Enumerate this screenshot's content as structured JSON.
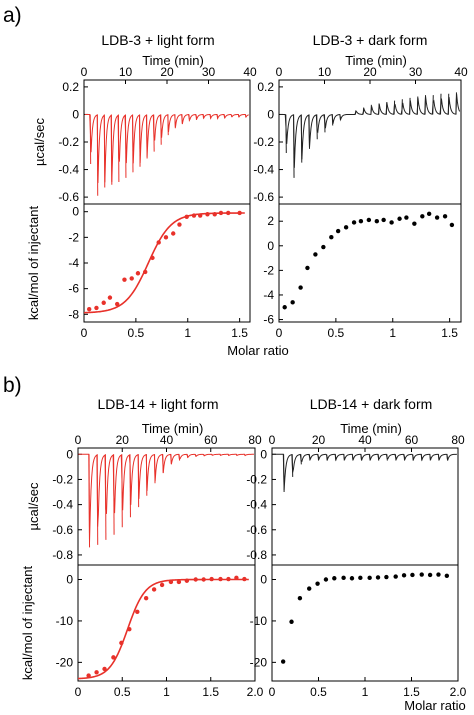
{
  "panel_labels": [
    "a)",
    "b)"
  ],
  "chart_data": [
    {
      "id": "a-light",
      "type": "line",
      "title": "LDB-3 + light form",
      "thermogram": {
        "xlabel": "Time (min)",
        "xlim": [
          0,
          40
        ],
        "xticks": [
          0,
          10,
          20,
          30,
          40
        ],
        "xtick_labels": [
          "0",
          "10",
          "20",
          "30",
          "40"
        ],
        "ylabel": "µcal/sec",
        "ylim": [
          -0.65,
          0.25
        ],
        "yticks": [
          0.2,
          0,
          -0.2,
          -0.4,
          -0.6
        ],
        "ytick_labels": [
          "0.2",
          "0",
          "-0.2",
          "-0.4",
          "-0.6"
        ],
        "color": "#e8312a",
        "injection_times": [
          1.5,
          3.2,
          4.9,
          6.6,
          8.3,
          10.0,
          11.7,
          13.4,
          15.1,
          16.8,
          18.5,
          20.2,
          21.9,
          23.6,
          25.3,
          27.0,
          28.7,
          30.4,
          32.1,
          33.8,
          35.5,
          37.2,
          38.9
        ],
        "peaks": [
          -0.36,
          -0.59,
          -0.53,
          -0.51,
          -0.49,
          -0.46,
          -0.42,
          -0.38,
          -0.32,
          -0.27,
          -0.22,
          -0.15,
          -0.1,
          -0.07,
          -0.05,
          -0.04,
          -0.03,
          -0.03,
          -0.03,
          -0.03,
          -0.02,
          -0.02,
          -0.02
        ]
      },
      "isotherm": {
        "xlabel": "",
        "xlim": [
          0,
          1.6
        ],
        "xticks": [
          0,
          0.5,
          1,
          1.5
        ],
        "xtick_labels": [
          "0",
          "0.5",
          "1",
          "1.5"
        ],
        "ylabel": "kcal/mol of injectant",
        "ylim": [
          -8.6,
          0.6
        ],
        "yticks": [
          0,
          -2,
          -4,
          -6,
          -8
        ],
        "ytick_labels": [
          "0",
          "-2",
          "-4",
          "-6",
          "-8"
        ],
        "point_color": "#e8312a",
        "fit_color": "#e8312a",
        "x": [
          0.05,
          0.12,
          0.19,
          0.25,
          0.32,
          0.39,
          0.46,
          0.52,
          0.59,
          0.66,
          0.72,
          0.79,
          0.86,
          0.92,
          0.99,
          1.06,
          1.12,
          1.19,
          1.26,
          1.32,
          1.39,
          1.5
        ],
        "y": [
          -7.6,
          -7.5,
          -7.1,
          -6.7,
          -7.2,
          -5.3,
          -5.2,
          -4.8,
          -4.7,
          -3.6,
          -2.4,
          -2.0,
          -1.7,
          -1.0,
          -0.4,
          -0.3,
          -0.3,
          -0.2,
          -0.2,
          -0.1,
          -0.1,
          -0.1
        ],
        "fit": {
          "ymin": -7.9,
          "ymax": -0.1,
          "x50": 0.62,
          "width": 0.11
        }
      }
    },
    {
      "id": "a-dark",
      "type": "line",
      "title": "LDB-3 + dark form",
      "thermogram": {
        "xlabel": "Time (min)",
        "xlim": [
          0,
          40
        ],
        "xticks": [
          0,
          10,
          20,
          30,
          40
        ],
        "xtick_labels": [
          "0",
          "10",
          "20",
          "30",
          "40"
        ],
        "ylabel": "",
        "ylim": [
          -0.65,
          0.25
        ],
        "yticks": [
          0.2,
          0,
          -0.2,
          -0.4,
          -0.6
        ],
        "ytick_labels": [
          "0.2",
          "0",
          "-0.2",
          "-0.4",
          "-0.6"
        ],
        "color": "#222222",
        "injection_times": [
          1.5,
          3.2,
          4.9,
          6.6,
          8.3,
          10.0,
          11.7,
          13.4,
          15.1,
          16.8,
          18.5,
          20.2,
          21.9,
          23.6,
          25.3,
          27.0,
          28.7,
          30.4,
          32.1,
          33.8,
          35.5,
          37.2,
          38.9
        ],
        "peaks": [
          -0.28,
          -0.46,
          -0.35,
          -0.25,
          -0.18,
          -0.13,
          -0.08,
          -0.04,
          0.0,
          0.03,
          0.05,
          0.07,
          0.08,
          0.09,
          0.1,
          0.11,
          0.12,
          0.13,
          0.14,
          0.14,
          0.15,
          0.15,
          0.16
        ]
      },
      "isotherm": {
        "xlabel": "",
        "xlim": [
          0,
          1.6
        ],
        "xticks": [
          0,
          0.5,
          1,
          1.5
        ],
        "xtick_labels": [
          "0",
          "0.5",
          "1",
          "1.5"
        ],
        "ylabel": "",
        "ylim": [
          -6.2,
          3.4
        ],
        "yticks": [
          2,
          0,
          -2,
          -4,
          -6
        ],
        "ytick_labels": [
          "2",
          "0",
          "-2",
          "-4",
          "-6"
        ],
        "point_color": "#000000",
        "x": [
          0.05,
          0.12,
          0.19,
          0.25,
          0.32,
          0.39,
          0.46,
          0.52,
          0.59,
          0.66,
          0.72,
          0.79,
          0.86,
          0.92,
          0.99,
          1.06,
          1.12,
          1.19,
          1.26,
          1.32,
          1.39,
          1.46,
          1.52
        ],
        "y": [
          -5.0,
          -4.6,
          -3.4,
          -1.8,
          -0.7,
          -0.1,
          0.7,
          1.2,
          1.5,
          1.9,
          2.0,
          2.1,
          2.0,
          2.1,
          1.9,
          2.2,
          2.3,
          1.8,
          2.4,
          2.6,
          2.3,
          2.4,
          1.7
        ]
      }
    },
    {
      "id": "b-light",
      "type": "line",
      "title": "LDB-14 + light form",
      "thermogram": {
        "xlabel": "Time (min)",
        "xlim": [
          0,
          80
        ],
        "xticks": [
          0,
          20,
          40,
          60,
          80
        ],
        "xtick_labels": [
          "0",
          "20",
          "40",
          "60",
          "80"
        ],
        "ylabel": "µcal/sec",
        "ylim": [
          -0.88,
          0.05
        ],
        "yticks": [
          0,
          -0.2,
          -0.4,
          -0.6,
          -0.8
        ],
        "ytick_labels": [
          "0",
          "-0.2",
          "-0.4",
          "-0.6",
          "-0.8"
        ],
        "color": "#e8312a",
        "injection_times": [
          5,
          8.7,
          12.4,
          16.1,
          19.8,
          23.5,
          27.2,
          30.9,
          34.6,
          38.3,
          42,
          45.7,
          49.4,
          53.1,
          56.8,
          60.5,
          64.2,
          67.9,
          71.6,
          75.3
        ],
        "peaks": [
          -0.74,
          -0.72,
          -0.68,
          -0.64,
          -0.58,
          -0.5,
          -0.42,
          -0.33,
          -0.23,
          -0.15,
          -0.08,
          -0.05,
          -0.03,
          -0.02,
          -0.015,
          -0.01,
          -0.01,
          -0.01,
          -0.01,
          -0.01
        ]
      },
      "isotherm": {
        "xlabel": "",
        "xlim": [
          0,
          2.0
        ],
        "xticks": [
          0,
          0.5,
          1,
          1.5,
          2.0
        ],
        "xtick_labels": [
          "0",
          "0.5",
          "1",
          "1.5",
          "2.0"
        ],
        "ylabel": "kcal/mol of injectant",
        "ylim": [
          -24.5,
          3.5
        ],
        "yticks": [
          0,
          -10,
          -20
        ],
        "ytick_labels": [
          "0",
          "-10",
          "-20"
        ],
        "point_color": "#e8312a",
        "fit_color": "#e8312a",
        "x": [
          0.12,
          0.21,
          0.3,
          0.4,
          0.49,
          0.58,
          0.67,
          0.77,
          0.86,
          0.95,
          1.05,
          1.14,
          1.23,
          1.33,
          1.42,
          1.51,
          1.61,
          1.7,
          1.79,
          1.88
        ],
        "y": [
          -23.2,
          -22.4,
          -21.6,
          -18.8,
          -15.3,
          -12.0,
          -7.8,
          -4.5,
          -2.4,
          -1.3,
          -0.6,
          -0.6,
          -0.3,
          0.0,
          0.0,
          0.1,
          0.1,
          0.1,
          0.4,
          0.1
        ],
        "fit": {
          "ymin": -24.0,
          "ymax": 0.0,
          "x50": 0.56,
          "width": 0.1
        }
      }
    },
    {
      "id": "b-dark",
      "type": "line",
      "title": "LDB-14 + dark form",
      "thermogram": {
        "xlabel": "Time (min)",
        "xlim": [
          0,
          80
        ],
        "xticks": [
          0,
          20,
          40,
          60,
          80
        ],
        "xtick_labels": [
          "0",
          "20",
          "40",
          "60",
          "80"
        ],
        "ylabel": "",
        "ylim": [
          -0.88,
          0.05
        ],
        "yticks": [
          0,
          -0.2,
          -0.4,
          -0.6,
          -0.8
        ],
        "ytick_labels": [
          "0",
          "-0.2",
          "-0.4",
          "-0.6",
          "-0.8"
        ],
        "color": "#222222",
        "injection_times": [
          5,
          8.7,
          12.4,
          16.1,
          19.8,
          23.5,
          27.2,
          30.9,
          34.6,
          38.3,
          42,
          45.7,
          49.4,
          53.1,
          56.8,
          60.5,
          64.2,
          67.9,
          71.6,
          75.3
        ],
        "peaks": [
          -0.3,
          -0.18,
          -0.08,
          -0.05,
          -0.05,
          -0.05,
          -0.05,
          -0.05,
          -0.05,
          -0.05,
          -0.05,
          -0.05,
          -0.05,
          -0.05,
          -0.05,
          -0.05,
          -0.05,
          -0.05,
          -0.05,
          -0.05
        ]
      },
      "isotherm": {
        "xlabel": "",
        "xlim": [
          0,
          2.0
        ],
        "xticks": [
          0,
          0.5,
          1,
          1.5,
          2.0
        ],
        "xtick_labels": [
          "0",
          "0.5",
          "1",
          "1.5",
          "2.0"
        ],
        "ylabel": "",
        "ylim": [
          -24.5,
          3.5
        ],
        "yticks": [
          0,
          -10,
          -20
        ],
        "ytick_labels": [
          "0",
          "-10",
          "-20"
        ],
        "point_color": "#000000",
        "x": [
          0.12,
          0.21,
          0.3,
          0.4,
          0.49,
          0.58,
          0.67,
          0.77,
          0.86,
          0.95,
          1.05,
          1.14,
          1.23,
          1.33,
          1.42,
          1.51,
          1.61,
          1.7,
          1.79,
          1.88
        ],
        "y": [
          -19.8,
          -10.2,
          -4.5,
          -2.2,
          -1.0,
          0.0,
          0.3,
          0.4,
          0.3,
          0.4,
          0.4,
          0.5,
          0.6,
          0.7,
          1.0,
          1.1,
          1.2,
          1.1,
          1.2,
          0.9
        ]
      }
    }
  ],
  "shared_xlabel": "Molar ratio"
}
